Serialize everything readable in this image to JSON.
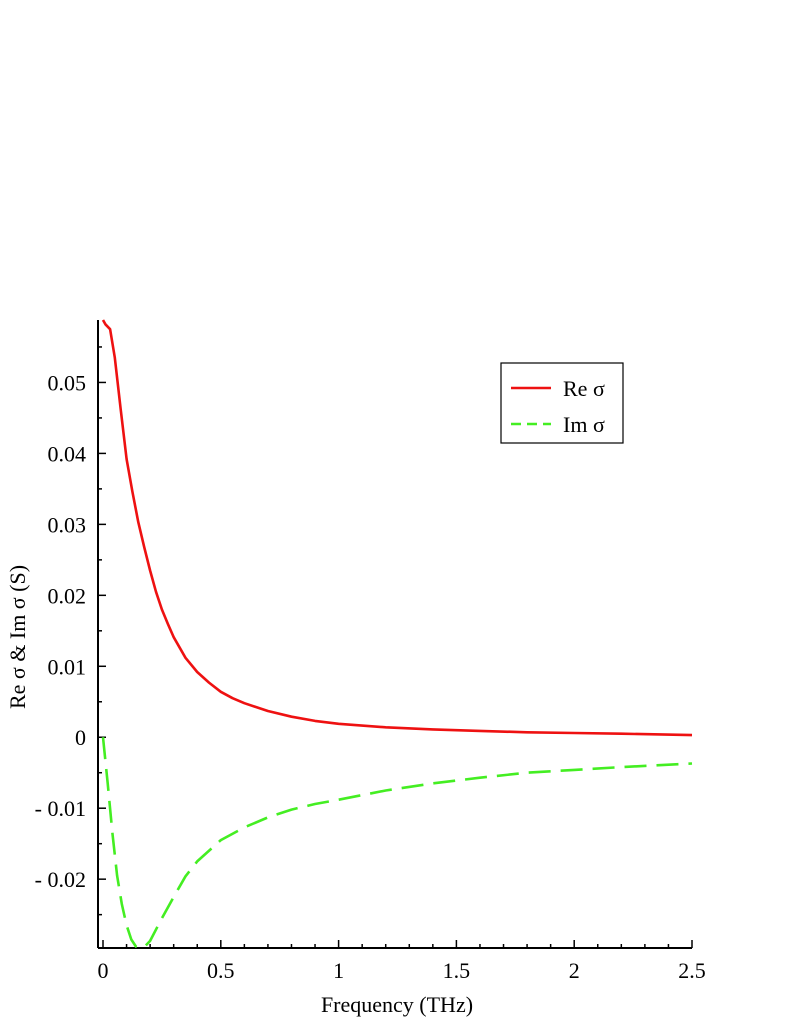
{
  "chart_data": {
    "type": "line",
    "title": "",
    "xlabel": "Frequency (THz)",
    "ylabel": "Re σ & Im σ  (S)",
    "xlim": [
      0,
      2.5
    ],
    "ylim": [
      -0.0297,
      0.0588
    ],
    "x_ticks": [
      {
        "value": 0,
        "label": "0"
      },
      {
        "value": 0.5,
        "label": "0.5"
      },
      {
        "value": 1,
        "label": "1"
      },
      {
        "value": 1.5,
        "label": "1.5"
      },
      {
        "value": 2,
        "label": "2"
      },
      {
        "value": 2.5,
        "label": "2.5"
      }
    ],
    "y_ticks": [
      {
        "value": 0.05,
        "label": "0.05"
      },
      {
        "value": 0.04,
        "label": "0.04"
      },
      {
        "value": 0.03,
        "label": "0.03"
      },
      {
        "value": 0.02,
        "label": "0.02"
      },
      {
        "value": 0.01,
        "label": "0.01"
      },
      {
        "value": 0,
        "label": "0"
      },
      {
        "value": -0.01,
        "label": "- 0.01"
      },
      {
        "value": -0.02,
        "label": "- 0.02"
      }
    ],
    "grid": false,
    "legend_position": "top-right",
    "series": [
      {
        "name": "Re σ",
        "color": "#ee1111",
        "style": "solid",
        "x": [
          0.0,
          0.01,
          0.03,
          0.05,
          0.075,
          0.1,
          0.125,
          0.15,
          0.175,
          0.2,
          0.225,
          0.25,
          0.275,
          0.3,
          0.35,
          0.4,
          0.45,
          0.5,
          0.55,
          0.6,
          0.7,
          0.8,
          0.9,
          1.0,
          1.2,
          1.4,
          1.6,
          1.8,
          2.0,
          2.2,
          2.5
        ],
        "values": [
          0.0588,
          0.0582,
          0.0575,
          0.0535,
          0.0462,
          0.0392,
          0.0346,
          0.0303,
          0.0268,
          0.0235,
          0.0205,
          0.018,
          0.016,
          0.0141,
          0.0112,
          0.0092,
          0.0077,
          0.0064,
          0.0055,
          0.0048,
          0.0037,
          0.0029,
          0.0023,
          0.0019,
          0.0014,
          0.0011,
          0.0009,
          0.0007,
          0.0006,
          0.0005,
          0.0003
        ]
      },
      {
        "name": "Im σ",
        "color": "#44ee22",
        "style": "dashed",
        "x": [
          0.0,
          0.02,
          0.04,
          0.06,
          0.08,
          0.1,
          0.12,
          0.14,
          0.16,
          0.18,
          0.2,
          0.25,
          0.3,
          0.35,
          0.4,
          0.5,
          0.6,
          0.7,
          0.8,
          0.9,
          1.0,
          1.2,
          1.4,
          1.6,
          1.8,
          2.0,
          2.2,
          2.5
        ],
        "values": [
          0.0,
          -0.0065,
          -0.0135,
          -0.0195,
          -0.0235,
          -0.0265,
          -0.0285,
          -0.0295,
          -0.0297,
          -0.0294,
          -0.0287,
          -0.0255,
          -0.0225,
          -0.0196,
          -0.0175,
          -0.0145,
          -0.0127,
          -0.0113,
          -0.0102,
          -0.0094,
          -0.0088,
          -0.0075,
          -0.0065,
          -0.0057,
          -0.005,
          -0.0046,
          -0.0042,
          -0.0037
        ]
      }
    ]
  }
}
